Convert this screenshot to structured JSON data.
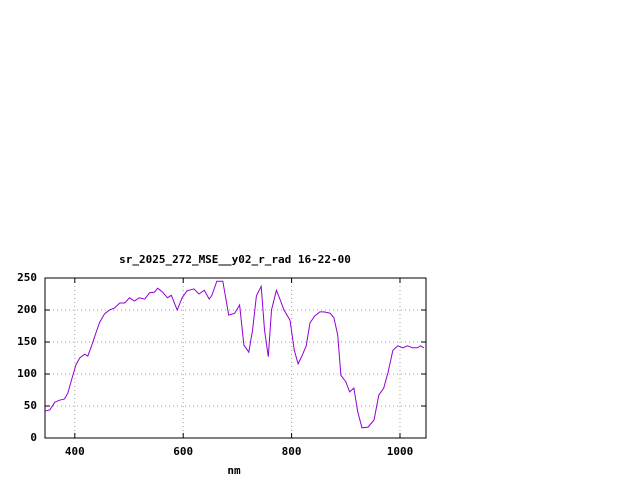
{
  "chart_data": {
    "type": "line",
    "title": "sr_2025_272_MSE__y02_r_rad 16-22-00",
    "x_label": "nm",
    "xlim": [
      345,
      1048
    ],
    "xticks": [
      400,
      600,
      800,
      1000
    ],
    "ylim": [
      0,
      250
    ],
    "yticks": [
      0,
      50,
      100,
      150,
      200,
      250
    ],
    "grid": true,
    "series": [
      {
        "color": "#9400d3",
        "x": [
          345,
          354,
          363,
          372,
          381,
          387,
          394,
          402,
          409,
          418,
          424,
          431,
          439,
          446,
          455,
          464,
          473,
          483,
          492,
          501,
          510,
          519,
          529,
          538,
          547,
          553,
          562,
          571,
          578,
          589,
          598,
          607,
          620,
          629,
          639,
          648,
          653,
          662,
          673,
          684,
          695,
          704,
          712,
          721,
          728,
          735,
          744,
          750,
          757,
          763,
          772,
          779,
          786,
          797,
          805,
          812,
          819,
          827,
          834,
          843,
          852,
          860,
          871,
          878,
          885,
          891,
          900,
          907,
          915,
          922,
          930,
          941,
          952,
          961,
          970,
          978,
          987,
          996,
          1005,
          1014,
          1023,
          1032,
          1038,
          1044
        ],
        "values": [
          42,
          44,
          56,
          59,
          61,
          70,
          91,
          114,
          125,
          131,
          128,
          144,
          164,
          181,
          194,
          200,
          203,
          211,
          211,
          219,
          214,
          219,
          217,
          227,
          228,
          234,
          228,
          219,
          223,
          200,
          219,
          230,
          233,
          225,
          231,
          217,
          223,
          245,
          245,
          192,
          195,
          208,
          145,
          134,
          169,
          222,
          237,
          169,
          127,
          200,
          231,
          216,
          200,
          184,
          137,
          116,
          128,
          144,
          180,
          191,
          197,
          197,
          195,
          188,
          161,
          98,
          88,
          72,
          78,
          41,
          16,
          17,
          28,
          67,
          78,
          103,
          137,
          144,
          141,
          144,
          141,
          141,
          144,
          141
        ]
      }
    ]
  }
}
